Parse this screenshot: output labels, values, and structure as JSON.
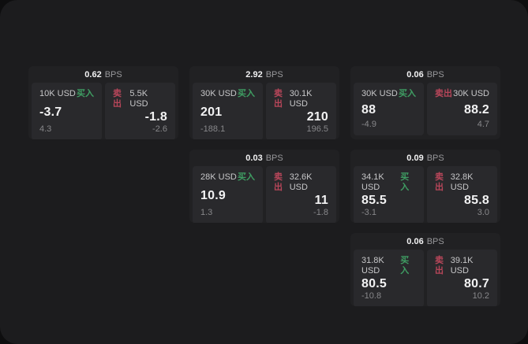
{
  "theme": {
    "page_bg": "#0e0e0f",
    "window_bg": "#1c1c1e",
    "card_bg": "#212123",
    "panel_bg": "#29292c",
    "buy_color": "#3f9e63",
    "sell_color": "#b8465a",
    "value_color": "#f2f2f3",
    "label_color": "#c7c7c9",
    "sub_color": "#87878a",
    "muted_color": "#98989b"
  },
  "labels": {
    "bps_unit": "BPS",
    "buy": "买入",
    "sell": "卖出"
  },
  "cards": [
    {
      "bps": "0.62",
      "row": 1,
      "col": 1,
      "buy": {
        "amount": "10K USD",
        "value": "-3.7",
        "sub": "4.3"
      },
      "sell": {
        "amount": "5.5K USD",
        "value": "-1.8",
        "sub": "-2.6"
      }
    },
    {
      "bps": "2.92",
      "row": 1,
      "col": 2,
      "buy": {
        "amount": "30K USD",
        "value": "201",
        "sub": "-188.1"
      },
      "sell": {
        "amount": "30.1K USD",
        "value": "210",
        "sub": "196.5"
      }
    },
    {
      "bps": "0.06",
      "row": 1,
      "col": 3,
      "buy": {
        "amount": "30K USD",
        "value": "88",
        "sub": "-4.9"
      },
      "sell": {
        "amount": "30K USD",
        "value": "88.2",
        "sub": "4.7"
      }
    },
    {
      "bps": "0.03",
      "row": 2,
      "col": 2,
      "buy": {
        "amount": "28K USD",
        "value": "10.9",
        "sub": "1.3"
      },
      "sell": {
        "amount": "32.6K USD",
        "value": "11",
        "sub": "-1.8"
      }
    },
    {
      "bps": "0.09",
      "row": 2,
      "col": 3,
      "buy": {
        "amount": "34.1K USD",
        "value": "85.5",
        "sub": "-3.1"
      },
      "sell": {
        "amount": "32.8K USD",
        "value": "85.8",
        "sub": "3.0"
      }
    },
    {
      "bps": "0.06",
      "row": 3,
      "col": 3,
      "buy": {
        "amount": "31.8K USD",
        "value": "80.5",
        "sub": "-10.8"
      },
      "sell": {
        "amount": "39.1K USD",
        "value": "80.7",
        "sub": "10.2"
      }
    }
  ]
}
